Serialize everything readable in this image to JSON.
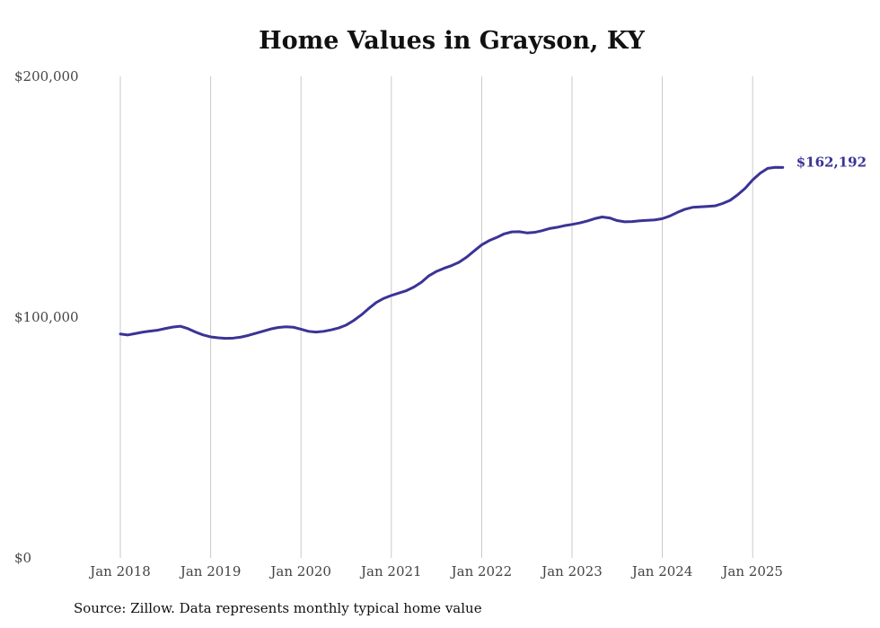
{
  "chart_data": {
    "type": "line",
    "title": "Home Values in Grayson, KY",
    "source": "Source: Zillow. Data represents monthly typical home value",
    "xlabel": "",
    "ylabel": "",
    "ylim": [
      0,
      200000
    ],
    "y_ticks": [
      0,
      100000,
      200000
    ],
    "y_tick_labels": [
      "$0",
      "$100,000",
      "$200,000"
    ],
    "x_ticks": [
      "2018-01",
      "2019-01",
      "2020-01",
      "2021-01",
      "2022-01",
      "2023-01",
      "2024-01",
      "2025-01"
    ],
    "x_tick_labels": [
      "Jan 2018",
      "Jan 2019",
      "Jan 2020",
      "Jan 2021",
      "Jan 2022",
      "Jan 2023",
      "Jan 2024",
      "Jan 2025"
    ],
    "x_range": [
      "2018-01",
      "2025-05"
    ],
    "grid": "vertical lines at each January",
    "line_color": "#3a3496",
    "end_label": "$162,192",
    "series": [
      {
        "x": [
          "2018-01",
          "2018-02",
          "2018-03",
          "2018-04",
          "2018-05",
          "2018-06",
          "2018-07",
          "2018-08",
          "2018-09",
          "2018-10",
          "2018-11",
          "2018-12",
          "2019-01",
          "2019-02",
          "2019-03",
          "2019-04",
          "2019-05",
          "2019-06",
          "2019-07",
          "2019-08",
          "2019-09",
          "2019-10",
          "2019-11",
          "2019-12",
          "2020-01",
          "2020-02",
          "2020-03",
          "2020-04",
          "2020-05",
          "2020-06",
          "2020-07",
          "2020-08",
          "2020-09",
          "2020-10",
          "2020-11",
          "2020-12",
          "2021-01",
          "2021-02",
          "2021-03",
          "2021-04",
          "2021-05",
          "2021-06",
          "2021-07",
          "2021-08",
          "2021-09",
          "2021-10",
          "2021-11",
          "2021-12",
          "2022-01",
          "2022-02",
          "2022-03",
          "2022-04",
          "2022-05",
          "2022-06",
          "2022-07",
          "2022-08",
          "2022-09",
          "2022-10",
          "2022-11",
          "2022-12",
          "2023-01",
          "2023-02",
          "2023-03",
          "2023-04",
          "2023-05",
          "2023-06",
          "2023-07",
          "2023-08",
          "2023-09",
          "2023-10",
          "2023-11",
          "2023-12",
          "2024-01",
          "2024-02",
          "2024-03",
          "2024-04",
          "2024-05",
          "2024-06",
          "2024-07",
          "2024-08",
          "2024-09",
          "2024-10",
          "2024-11",
          "2024-12",
          "2025-01",
          "2025-02",
          "2025-03",
          "2025-04",
          "2025-05"
        ],
        "values": [
          93000,
          92600,
          93200,
          93800,
          94200,
          94600,
          95300,
          95900,
          96200,
          95200,
          93800,
          92600,
          91800,
          91400,
          91200,
          91300,
          91700,
          92400,
          93300,
          94200,
          95100,
          95700,
          96000,
          95800,
          95000,
          94100,
          93800,
          94100,
          94700,
          95500,
          96700,
          98600,
          100900,
          103600,
          106100,
          107800,
          109000,
          110000,
          111000,
          112500,
          114500,
          117200,
          119000,
          120300,
          121400,
          122800,
          124900,
          127500,
          130000,
          131800,
          133100,
          134600,
          135400,
          135500,
          135000,
          135200,
          135900,
          136800,
          137300,
          138000,
          138500,
          139100,
          139900,
          140900,
          141600,
          141200,
          140100,
          139600,
          139700,
          140000,
          140200,
          140400,
          140900,
          142000,
          143500,
          144800,
          145600,
          145800,
          146000,
          146200,
          147200,
          148500,
          150800,
          153500,
          157000,
          159800,
          161800,
          162200,
          162192
        ]
      }
    ]
  }
}
